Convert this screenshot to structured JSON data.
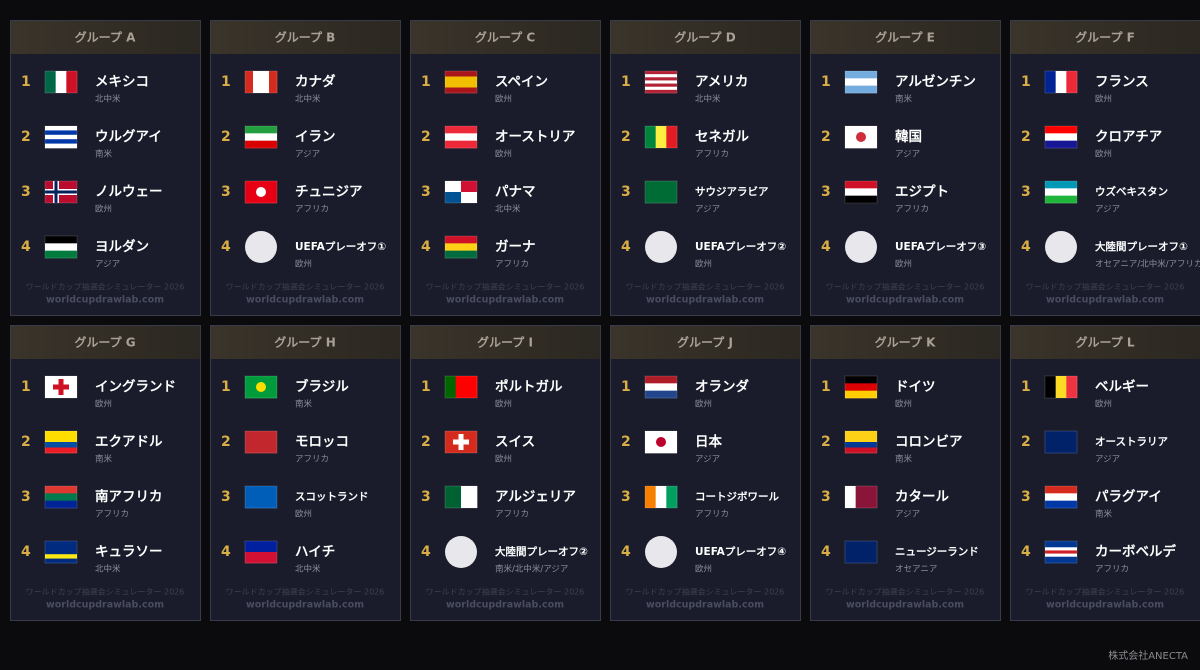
{
  "groups": [
    {
      "title": "グループ A",
      "teams": [
        {
          "rank": 1,
          "name": "メキシコ",
          "region": "北中米"
        },
        {
          "rank": 2,
          "name": "ウルグアイ",
          "region": "南米"
        },
        {
          "rank": 3,
          "name": "ノルウェー",
          "region": "欧州"
        },
        {
          "rank": 4,
          "name": "ヨルダン",
          "region": "アジア"
        }
      ],
      "watermark": "ワールドカップ抽選会シミュレーター 2026",
      "url": "worldcupdrawlab.com"
    },
    {
      "title": "グループ B",
      "teams": [
        {
          "rank": 1,
          "name": "カナダ",
          "region": "北中米"
        },
        {
          "rank": 2,
          "name": "イラン",
          "region": "アジア"
        },
        {
          "rank": 3,
          "name": "チュニジア",
          "region": "アフリカ"
        },
        {
          "rank": 4,
          "name": "UEFAプレーオフ①",
          "region": "欧州"
        }
      ],
      "watermark": "ワールドカップ抽選会シミュレーター 2026",
      "url": "worldcupdrawlab.com"
    },
    {
      "title": "グループ C",
      "teams": [
        {
          "rank": 1,
          "name": "スペイン",
          "region": "欧州"
        },
        {
          "rank": 2,
          "name": "オーストリア",
          "region": "欧州"
        },
        {
          "rank": 3,
          "name": "パナマ",
          "region": "北中米"
        },
        {
          "rank": 4,
          "name": "ガーナ",
          "region": "アフリカ"
        }
      ],
      "watermark": "ワールドカップ抽選会シミュレーター 2026",
      "url": "worldcupdrawlab.com"
    },
    {
      "title": "グループ D",
      "teams": [
        {
          "rank": 1,
          "name": "アメリカ",
          "region": "北中米"
        },
        {
          "rank": 2,
          "name": "セネガル",
          "region": "アフリカ"
        },
        {
          "rank": 3,
          "name": "サウジアラビア",
          "region": "アジア"
        },
        {
          "rank": 4,
          "name": "UEFAプレーオフ②",
          "region": "欧州"
        }
      ],
      "watermark": "ワールドカップ抽選会シミュレーター 2026",
      "url": "worldcupdrawlab.com"
    },
    {
      "title": "グループ E",
      "teams": [
        {
          "rank": 1,
          "name": "アルゼンチン",
          "region": "南米"
        },
        {
          "rank": 2,
          "name": "韓国",
          "region": "アジア"
        },
        {
          "rank": 3,
          "name": "エジプト",
          "region": "アフリカ"
        },
        {
          "rank": 4,
          "name": "UEFAプレーオフ③",
          "region": "欧州"
        }
      ],
      "watermark": "ワールドカップ抽選会シミュレーター 2026",
      "url": "worldcupdrawlab.com"
    },
    {
      "title": "グループ F",
      "teams": [
        {
          "rank": 1,
          "name": "フランス",
          "region": "欧州"
        },
        {
          "rank": 2,
          "name": "クロアチア",
          "region": "欧州"
        },
        {
          "rank": 3,
          "name": "ウズベキスタン",
          "region": "アジア"
        },
        {
          "rank": 4,
          "name": "大陸間プレーオフ①",
          "region": "オセアニア/北中米/アフリカ"
        }
      ],
      "watermark": "ワールドカップ抽選会シミュレーター 2026",
      "url": "worldcupdrawlab.com"
    },
    {
      "title": "グループ G",
      "teams": [
        {
          "rank": 1,
          "name": "イングランド",
          "region": "欧州"
        },
        {
          "rank": 2,
          "name": "エクアドル",
          "region": "南米"
        },
        {
          "rank": 3,
          "name": "南アフリカ",
          "region": "アフリカ"
        },
        {
          "rank": 4,
          "name": "キュラソー",
          "region": "北中米"
        }
      ],
      "watermark": "ワールドカップ抽選会シミュレーター 2026",
      "url": "worldcupdrawlab.com"
    },
    {
      "title": "グループ H",
      "teams": [
        {
          "rank": 1,
          "name": "ブラジル",
          "region": "南米"
        },
        {
          "rank": 2,
          "name": "モロッコ",
          "region": "アフリカ"
        },
        {
          "rank": 3,
          "name": "スコットランド",
          "region": "欧州"
        },
        {
          "rank": 4,
          "name": "ハイチ",
          "region": "北中米"
        }
      ],
      "watermark": "ワールドカップ抽選会シミュレーター 2026",
      "url": "worldcupdrawlab.com"
    },
    {
      "title": "グループ I",
      "teams": [
        {
          "rank": 1,
          "name": "ポルトガル",
          "region": "欧州"
        },
        {
          "rank": 2,
          "name": "スイス",
          "region": "欧州"
        },
        {
          "rank": 3,
          "name": "アルジェリア",
          "region": "アフリカ"
        },
        {
          "rank": 4,
          "name": "大陸間プレーオフ②",
          "region": "南米/北中米/アジア"
        }
      ],
      "watermark": "ワールドカップ抽選会シミュレーター 2026",
      "url": "worldcupdrawlab.com"
    },
    {
      "title": "グループ J",
      "teams": [
        {
          "rank": 1,
          "name": "オランダ",
          "region": "欧州"
        },
        {
          "rank": 2,
          "name": "日本",
          "region": "アジア"
        },
        {
          "rank": 3,
          "name": "コートジボワール",
          "region": "アフリカ"
        },
        {
          "rank": 4,
          "name": "UEFAプレーオフ④",
          "region": "欧州"
        }
      ],
      "watermark": "ワールドカップ抽選会シミュレーター 2026",
      "url": "worldcupdrawlab.com"
    },
    {
      "title": "グループ K",
      "teams": [
        {
          "rank": 1,
          "name": "ドイツ",
          "region": "欧州"
        },
        {
          "rank": 2,
          "name": "コロンビア",
          "region": "南米"
        },
        {
          "rank": 3,
          "name": "カタール",
          "region": "アジア"
        },
        {
          "rank": 4,
          "name": "ニュージーランド",
          "region": "オセアニア"
        }
      ],
      "watermark": "ワールドカップ抽選会シミュレーター 2026",
      "url": "worldcupdrawlab.com"
    },
    {
      "title": "グループ L",
      "teams": [
        {
          "rank": 1,
          "name": "ベルギー",
          "region": "欧州"
        },
        {
          "rank": 2,
          "name": "オーストラリア",
          "region": "アジア"
        },
        {
          "rank": 3,
          "name": "パラグアイ",
          "region": "南米"
        },
        {
          "rank": 4,
          "name": "カーボベルデ",
          "region": "アフリカ"
        }
      ],
      "watermark": "ワールドカップ抽選会シミュレーター 2026",
      "url": "worldcupdrawlab.com"
    }
  ],
  "footer": "株式会社ANECTA"
}
